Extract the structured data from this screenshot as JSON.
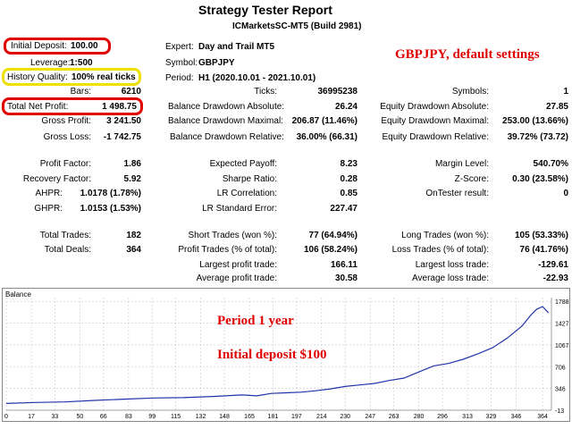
{
  "header": {
    "title": "Strategy Tester Report",
    "subtitle": "ICMarketsSC-MT5 (Build 2981)"
  },
  "annotations": {
    "settings": "GBPJPY, default settings",
    "period": "Period 1 year",
    "deposit": "Initial deposit $100",
    "colors": {
      "annotation": "#e00000",
      "deposit_box": "#e00000",
      "quality_box": "#f0e000",
      "line": "#2233aa"
    }
  },
  "params": {
    "initial_deposit_label": "Initial Deposit:",
    "initial_deposit": "100.00",
    "leverage_label": "Leverage:",
    "leverage": "1:500",
    "history_quality_label": "History Quality:",
    "history_quality": "100% real ticks",
    "expert_label": "Expert:",
    "expert": "Day and Trail MT5",
    "symbol_label": "Symbol:",
    "symbol": "GBPJPY",
    "period_label": "Period:",
    "period": "H1 (2020.10.01 - 2021.10.01)"
  },
  "stats": {
    "bars_label": "Bars:",
    "bars": "6210",
    "ticks_label": "Ticks:",
    "ticks": "36995238",
    "symbols_label": "Symbols:",
    "symbols": "1",
    "net_profit_label": "Total Net Profit:",
    "net_profit": "1 498.75",
    "bal_dd_abs_label": "Balance Drawdown Absolute:",
    "bal_dd_abs": "26.24",
    "eq_dd_abs_label": "Equity Drawdown Absolute:",
    "eq_dd_abs": "27.85",
    "gross_profit_label": "Gross Profit:",
    "gross_profit": "3 241.50",
    "bal_dd_max_label": "Balance Drawdown Maximal:",
    "bal_dd_max": "206.87 (11.46%)",
    "eq_dd_max_label": "Equity Drawdown Maximal:",
    "eq_dd_max": "253.00 (13.66%)",
    "gross_loss_label": "Gross Loss:",
    "gross_loss": "-1 742.75",
    "bal_dd_rel_label": "Balance Drawdown Relative:",
    "bal_dd_rel": "36.00% (66.31)",
    "eq_dd_rel_label": "Equity Drawdown Relative:",
    "eq_dd_rel": "39.72% (73.72)",
    "profit_factor_label": "Profit Factor:",
    "profit_factor": "1.86",
    "expected_payoff_label": "Expected Payoff:",
    "expected_payoff": "8.23",
    "margin_level_label": "Margin Level:",
    "margin_level": "540.70%",
    "recovery_factor_label": "Recovery Factor:",
    "recovery_factor": "5.92",
    "sharpe_label": "Sharpe Ratio:",
    "sharpe": "0.28",
    "zscore_label": "Z-Score:",
    "zscore": "0.30 (23.58%)",
    "ahpr_label": "AHPR:",
    "ahpr": "1.0178 (1.78%)",
    "lr_corr_label": "LR Correlation:",
    "lr_corr": "0.85",
    "ontester_label": "OnTester result:",
    "ontester": "0",
    "ghpr_label": "GHPR:",
    "ghpr": "1.0153 (1.53%)",
    "lr_err_label": "LR Standard Error:",
    "lr_err": "227.47",
    "total_trades_label": "Total Trades:",
    "total_trades": "182",
    "short_trades_label": "Short Trades (won %):",
    "short_trades": "77 (64.94%)",
    "long_trades_label": "Long Trades (won %):",
    "long_trades": "105 (53.33%)",
    "total_deals_label": "Total Deals:",
    "total_deals": "364",
    "profit_trades_label": "Profit Trades (% of total):",
    "profit_trades": "106 (58.24%)",
    "loss_trades_label": "Loss Trades (% of total):",
    "loss_trades": "76 (41.76%)",
    "largest_profit_label": "Largest profit trade:",
    "largest_profit": "166.11",
    "largest_loss_label": "Largest loss trade:",
    "largest_loss": "-129.61",
    "avg_profit_label": "Average profit trade:",
    "avg_profit": "30.58",
    "avg_loss_label": "Average loss trade:",
    "avg_loss": "-22.93"
  },
  "chart_data": {
    "type": "line",
    "title": "Balance",
    "xlabel": "",
    "ylabel": "",
    "x_ticks": [
      0,
      17,
      33,
      50,
      66,
      83,
      99,
      115,
      132,
      148,
      165,
      181,
      197,
      214,
      230,
      247,
      263,
      280,
      296,
      313,
      329,
      346,
      364
    ],
    "y_ticks": [
      -13,
      346,
      706,
      1067,
      1427,
      1788
    ],
    "xlim": [
      0,
      370
    ],
    "ylim": [
      -13,
      1850
    ],
    "grid": true,
    "series": [
      {
        "x": [
          0,
          20,
          40,
          60,
          80,
          100,
          120,
          140,
          160,
          170,
          180,
          190,
          200,
          210,
          220,
          230,
          240,
          250,
          260,
          270,
          280,
          290,
          300,
          310,
          320,
          330,
          340,
          350,
          356,
          360,
          364,
          368
        ],
        "values": [
          100,
          115,
          125,
          150,
          170,
          190,
          195,
          215,
          240,
          225,
          265,
          275,
          285,
          310,
          340,
          380,
          405,
          430,
          480,
          520,
          620,
          720,
          760,
          830,
          920,
          1020,
          1180,
          1380,
          1560,
          1660,
          1700,
          1600
        ]
      }
    ]
  }
}
